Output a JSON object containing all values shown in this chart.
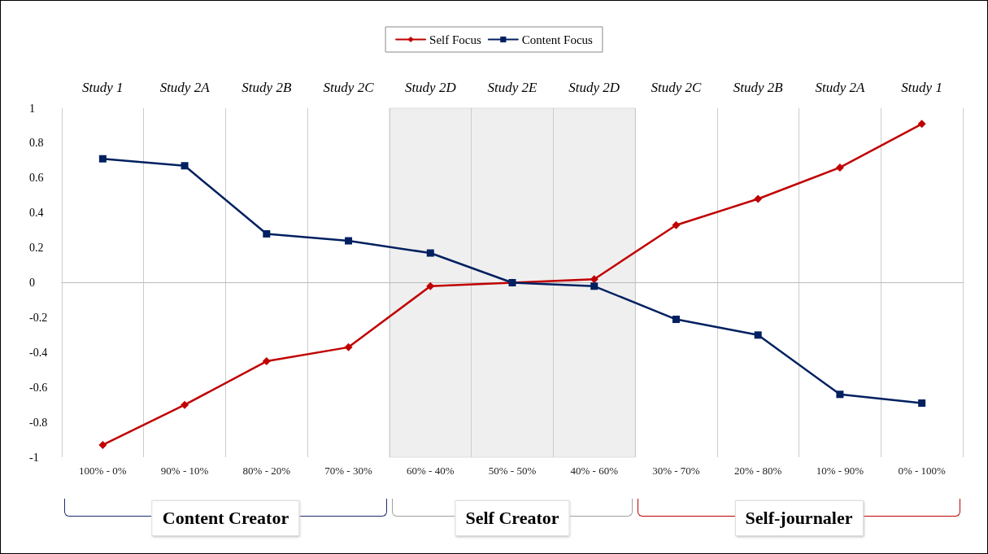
{
  "chart_data": {
    "type": "line",
    "categories": [
      "100% - 0%",
      "90% - 10%",
      "80% - 20%",
      "70% - 30%",
      "60% - 40%",
      "50% - 50%",
      "40% - 60%",
      "30% - 70%",
      "20% - 80%",
      "10% - 90%",
      "0% - 100%"
    ],
    "series": [
      {
        "name": "Self Focus",
        "color": "#c00000",
        "marker": "diamond",
        "values": [
          -0.93,
          -0.7,
          -0.45,
          -0.37,
          -0.02,
          0,
          0.02,
          0.33,
          0.48,
          0.66,
          0.91
        ]
      },
      {
        "name": "Content Focus",
        "color": "#002060",
        "marker": "square",
        "values": [
          0.71,
          0.67,
          0.28,
          0.24,
          0.17,
          0,
          -0.02,
          -0.21,
          -0.3,
          -0.64,
          -0.69
        ]
      }
    ],
    "ylim": [
      -1,
      1
    ],
    "yticks": [
      -1,
      -0.8,
      -0.6,
      -0.4,
      -0.2,
      0,
      0.2,
      0.4,
      0.6,
      0.8,
      1
    ],
    "grid": "x",
    "legend": "top",
    "bands": [
      {
        "axis": "x",
        "from": "60% - 40%",
        "to": "40% - 60%",
        "label": "Self Creator",
        "color": "#efefef"
      }
    ],
    "annotations": [
      "Study 1",
      "Study 2A",
      "Study 2B",
      "Study 2C",
      "Study 2D",
      "Study 2E",
      "Study 2D",
      "Study 2C",
      "Study 2B",
      "Study 2A",
      "Study 1",
      "Content Creator",
      "Self-journaler"
    ]
  }
}
